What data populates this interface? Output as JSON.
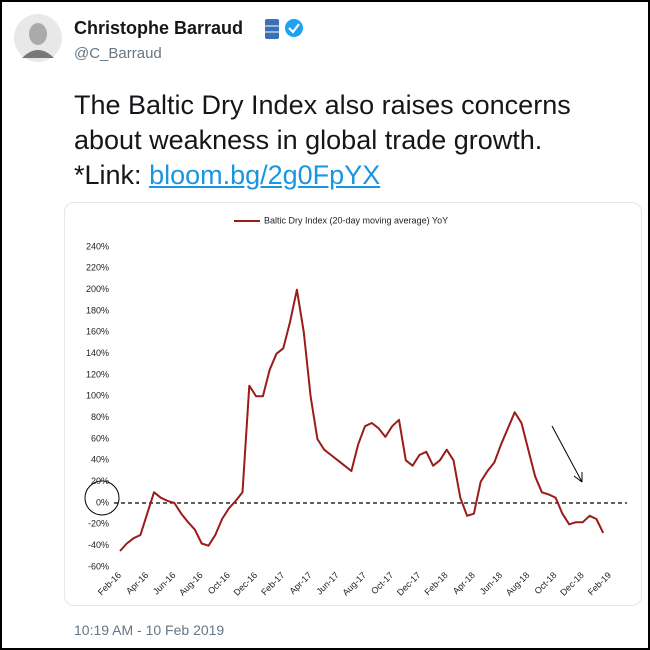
{
  "tweet": {
    "author": "Christophe Barraud",
    "handle": "@C_Barraud",
    "text_lines": [
      "The Baltic Dry Index also raises concerns",
      "about weakness in global trade growth."
    ],
    "link_prefix": "*Link:",
    "link": "bloom.bg/2g0FpYX",
    "timestamp": "10:19 AM - 10 Feb 2019"
  },
  "chart_data": {
    "type": "line",
    "categories": [
      "Feb-16",
      null,
      null,
      null,
      "Apr-16",
      null,
      null,
      null,
      "Jun-16",
      null,
      null,
      null,
      "Aug-16",
      null,
      null,
      null,
      "Oct-16",
      null,
      null,
      null,
      "Dec-16",
      null,
      null,
      null,
      "Feb-17",
      null,
      null,
      null,
      "Apr-17",
      null,
      null,
      null,
      "Jun-17",
      null,
      null,
      null,
      "Aug-17",
      null,
      null,
      null,
      "Oct-17",
      null,
      null,
      null,
      "Dec-17",
      null,
      null,
      null,
      "Feb-18",
      null,
      null,
      null,
      "Apr-18",
      null,
      null,
      null,
      "Jun-18",
      null,
      null,
      null,
      "Aug-18",
      null,
      null,
      null,
      "Oct-18",
      null,
      null,
      null,
      "Dec-18",
      null,
      null,
      null,
      "Feb-19"
    ],
    "series": [
      {
        "name": "Baltic Dry Index (20-day moving average) YoY",
        "color": "#9b1b1b",
        "values": [
          -45,
          -38,
          -33,
          -30,
          -10,
          10,
          5,
          2,
          0,
          -10,
          -18,
          -25,
          -38,
          -40,
          -30,
          -15,
          -5,
          2,
          10,
          110,
          100,
          100,
          125,
          140,
          145,
          170,
          200,
          160,
          100,
          60,
          50,
          45,
          40,
          35,
          30,
          55,
          72,
          75,
          70,
          62,
          72,
          78,
          40,
          35,
          45,
          48,
          35,
          40,
          50,
          40,
          5,
          -12,
          -10,
          20,
          30,
          38,
          55,
          70,
          85,
          75,
          50,
          25,
          10,
          8,
          5,
          -10,
          -20,
          -18,
          -18,
          -12,
          -15,
          -28,
          null
        ]
      }
    ],
    "ylim": [
      -60,
      240
    ],
    "yticks": [
      {
        "value": -60,
        "label": "-60%"
      },
      {
        "value": -40,
        "label": "-40%"
      },
      {
        "value": -20,
        "label": "-20%"
      },
      {
        "value": 0,
        "label": "0%"
      },
      {
        "value": 20,
        "label": "20%"
      },
      {
        "value": 40,
        "label": "40%"
      },
      {
        "value": 60,
        "label": "60%"
      },
      {
        "value": 80,
        "label": "80%"
      },
      {
        "value": 100,
        "label": "100%"
      },
      {
        "value": 120,
        "label": "120%"
      },
      {
        "value": 140,
        "label": "140%"
      },
      {
        "value": 160,
        "label": "160%"
      },
      {
        "value": 180,
        "label": "180%"
      },
      {
        "value": 200,
        "label": "200%"
      },
      {
        "value": 220,
        "label": "220%"
      },
      {
        "value": 240,
        "label": "240%"
      }
    ],
    "grid": false,
    "legend": "top"
  }
}
